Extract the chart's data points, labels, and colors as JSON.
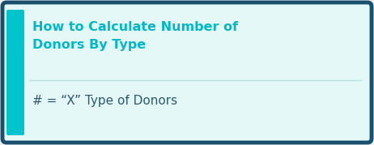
{
  "title_line1": "How to Calculate Number of",
  "title_line2": "Donors By Type",
  "formula_text": "# = “X” Type of Donors",
  "bg_color": "#e5f8f8",
  "border_color": "#1a4f6e",
  "accent_color": "#00c4cc",
  "title_color": "#00b8c8",
  "formula_color": "#2a5a70",
  "divider_color": "#b8e0e8",
  "outer_bg": "#f0f0f0",
  "title_fontsize": 11.5,
  "formula_fontsize": 11.0
}
